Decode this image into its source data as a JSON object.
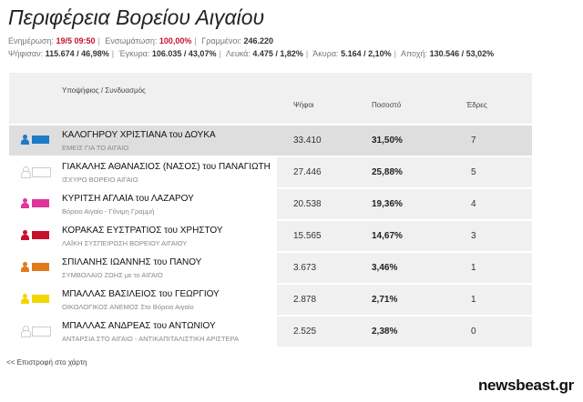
{
  "title": "Περιφέρεια Βορείου Αιγαίου",
  "stats_line1": {
    "updated_label": "Ενημέρωση:",
    "updated_value": "19/5 09:50",
    "counted_label": "Ενσωμάτωση:",
    "counted_value": "100,00%",
    "registered_label": "Γραμμένοι:",
    "registered_value": "246.220"
  },
  "stats_line2": {
    "voted_label": "Ψήφισαν:",
    "voted_value": "115.674 / 46,98%",
    "valid_label": "Έγκυρα:",
    "valid_value": "106.035 / 43,07%",
    "blank_label": "Λευκά:",
    "blank_value": "4.475 / 1,82%",
    "invalid_label": "Άκυρα:",
    "invalid_value": "5.164 / 2,10%",
    "abstain_label": "Αποχή:",
    "abstain_value": "130.546 / 53,02%"
  },
  "table": {
    "headers": {
      "candidate": "Υποψήφιος / Συνδυασμός",
      "votes": "Ψήφοι",
      "percent": "Ποσοστό",
      "seats": "Έδρες"
    },
    "rows": [
      {
        "name": "ΚΑΛΟΓΗΡΟΥ ΧΡΙΣΤΙΑΝΑ του ΔΟΥΚΑ",
        "party": "ΕΜΕΙΣ ΓΙΑ ΤΟ ΑΙΓΑΙΟ",
        "votes": "33.410",
        "percent": "31,50%",
        "seats": "7",
        "color": "#1e7bc6",
        "highlight": true
      },
      {
        "name": "ΓΙΑΚΑΛΗΣ ΑΘΑΝΑΣΙΟΣ (ΝΑΣΟΣ) του ΠΑΝΑΓΙΩΤΗ",
        "party": "ΙΣΧΥΡΟ ΒΟΡΕΙΟ ΑΙΓΑΙΟ",
        "votes": "27.446",
        "percent": "25,88%",
        "seats": "5",
        "color": "#ffffff",
        "highlight": false
      },
      {
        "name": "ΚΥΡΙΤΣΗ ΑΓΛΑΪΑ του ΛΑΖΑΡΟΥ",
        "party": "Βόρειο Αιγαίο - Γόνιμη Γραμμή",
        "votes": "20.538",
        "percent": "19,36%",
        "seats": "4",
        "color": "#e0359a",
        "highlight": false
      },
      {
        "name": "ΚΟΡΑΚΑΣ ΕΥΣΤΡΑΤΙΟΣ του ΧΡΗΣΤΟΥ",
        "party": "ΛΑΪΚΗ ΣΥΣΠΕΙΡΩΣΗ ΒΟΡΕΙΟΥ ΑΙΓΑΙΟΥ",
        "votes": "15.565",
        "percent": "14,67%",
        "seats": "3",
        "color": "#c8102e",
        "highlight": false
      },
      {
        "name": "ΣΠΙΛΑΝΗΣ ΙΩΑΝΝΗΣ του ΠΑΝΟΥ",
        "party": "ΣΥΜΒΟΛΑΙΟ ΖΩΗΣ με το ΑΙΓΑΙΟ",
        "votes": "3.673",
        "percent": "3,46%",
        "seats": "1",
        "color": "#e07a1b",
        "highlight": false
      },
      {
        "name": "ΜΠΑΛΛΑΣ ΒΑΣΙΛΕΙΟΣ του ΓΕΩΡΓΙΟΥ",
        "party": "ΟΙΚΟΛΟΓΙΚΟΣ ΑΝΕΜΟΣ Στο Βόρειο Αιγαίο",
        "votes": "2.878",
        "percent": "2,71%",
        "seats": "1",
        "color": "#f2d600",
        "highlight": false
      },
      {
        "name": "ΜΠΑΛΛΑΣ ΑΝΔΡΕΑΣ του ΑΝΤΩΝΙΟΥ",
        "party": "ΑΝΤΑΡΣΙΑ ΣΤΟ ΑΙΓΑΙΟ - ΑΝΤΙΚΑΠΙΤΑΛΙΣΤΙΚΗ ΑΡΙΣΤΕΡΑ",
        "votes": "2.525",
        "percent": "2,38%",
        "seats": "0",
        "color": "#ffffff",
        "highlight": false
      }
    ]
  },
  "back_link": "<< Επιστροφή στο χάρτη",
  "logo": "newsbeast.gr"
}
